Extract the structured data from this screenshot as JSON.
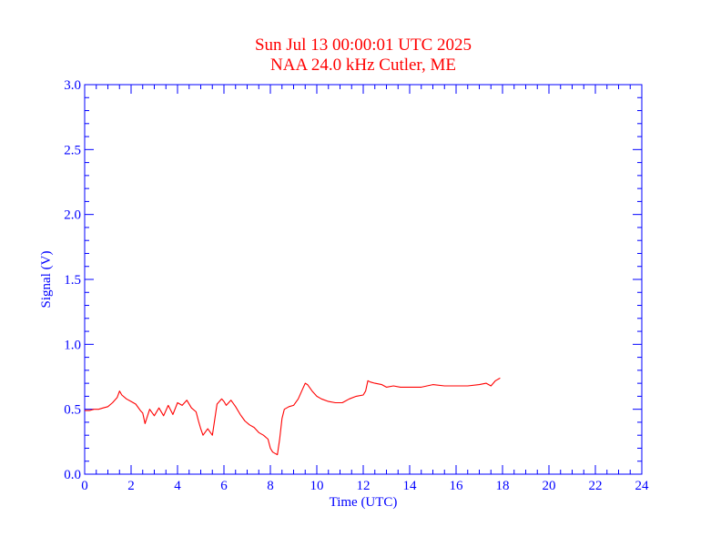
{
  "chart_data": {
    "type": "line",
    "title": "Sun Jul 13 00:00:01 UTC 2025",
    "subtitle": "NAA 24.0 kHz Cutler, ME",
    "xlabel": "Time (UTC)",
    "ylabel": "Signal (V)",
    "xlim": [
      0,
      24
    ],
    "ylim": [
      0,
      3.0
    ],
    "x_ticks": [
      "0",
      "2",
      "4",
      "6",
      "8",
      "10",
      "12",
      "14",
      "16",
      "18",
      "20",
      "22",
      "24"
    ],
    "y_ticks": [
      "0.0",
      "0.5",
      "1.0",
      "1.5",
      "2.0",
      "2.5",
      "3.0"
    ],
    "grid": false,
    "colors": {
      "axis": "#0000ff",
      "line": "#ff0000",
      "title": "#ff0000"
    },
    "series": [
      {
        "x": [
          0.0,
          0.2,
          0.4,
          0.6,
          0.8,
          1.0,
          1.2,
          1.4,
          1.5,
          1.6,
          1.8,
          2.0,
          2.2,
          2.4,
          2.5,
          2.6,
          2.8,
          3.0,
          3.2,
          3.4,
          3.6,
          3.8,
          4.0,
          4.2,
          4.4,
          4.6,
          4.8,
          4.9,
          5.0,
          5.1,
          5.3,
          5.5,
          5.7,
          5.9,
          6.0,
          6.1,
          6.3,
          6.5,
          6.7,
          6.9,
          7.1,
          7.3,
          7.5,
          7.7,
          7.9,
          8.0,
          8.1,
          8.2,
          8.3,
          8.4,
          8.5,
          8.6,
          8.8,
          9.0,
          9.2,
          9.4,
          9.5,
          9.6,
          9.8,
          10.0,
          10.2,
          10.5,
          10.8,
          11.1,
          11.4,
          11.7,
          12.0,
          12.1,
          12.2,
          12.3,
          12.5,
          12.8,
          13.0,
          13.3,
          13.6,
          14.0,
          14.5,
          15.0,
          15.5,
          16.0,
          16.5,
          17.0,
          17.3,
          17.5,
          17.7,
          17.9
        ],
        "y": [
          0.49,
          0.49,
          0.5,
          0.5,
          0.51,
          0.52,
          0.55,
          0.59,
          0.64,
          0.61,
          0.58,
          0.56,
          0.54,
          0.49,
          0.47,
          0.39,
          0.5,
          0.45,
          0.51,
          0.45,
          0.53,
          0.46,
          0.55,
          0.53,
          0.57,
          0.51,
          0.48,
          0.41,
          0.35,
          0.3,
          0.35,
          0.3,
          0.54,
          0.58,
          0.56,
          0.53,
          0.57,
          0.52,
          0.46,
          0.41,
          0.38,
          0.36,
          0.32,
          0.3,
          0.27,
          0.2,
          0.17,
          0.16,
          0.15,
          0.27,
          0.43,
          0.5,
          0.52,
          0.53,
          0.58,
          0.66,
          0.7,
          0.69,
          0.64,
          0.6,
          0.58,
          0.56,
          0.55,
          0.55,
          0.58,
          0.6,
          0.61,
          0.64,
          0.72,
          0.71,
          0.7,
          0.69,
          0.67,
          0.68,
          0.67,
          0.67,
          0.67,
          0.69,
          0.68,
          0.68,
          0.68,
          0.69,
          0.7,
          0.68,
          0.72,
          0.74
        ]
      }
    ]
  }
}
